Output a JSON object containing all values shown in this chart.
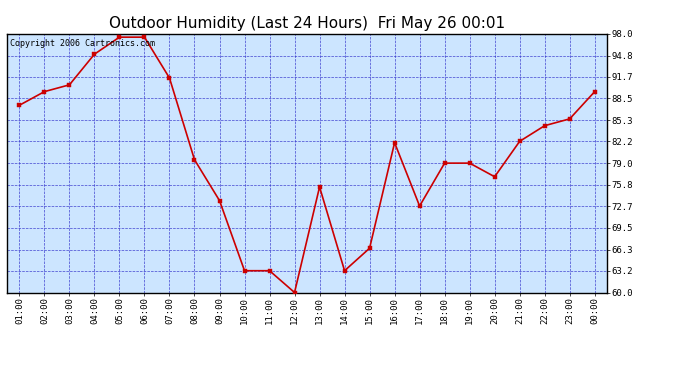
{
  "title": "Outdoor Humidity (Last 24 Hours)  Fri May 26 00:01",
  "copyright_text": "Copyright 2006 Cartronics.com",
  "x_labels": [
    "01:00",
    "02:00",
    "03:00",
    "04:00",
    "05:00",
    "06:00",
    "07:00",
    "08:00",
    "09:00",
    "10:00",
    "11:00",
    "12:00",
    "13:00",
    "14:00",
    "15:00",
    "16:00",
    "17:00",
    "18:00",
    "19:00",
    "20:00",
    "21:00",
    "22:00",
    "23:00",
    "00:00"
  ],
  "y_values": [
    87.5,
    89.5,
    90.5,
    95.0,
    97.5,
    97.5,
    91.5,
    79.5,
    73.5,
    63.2,
    63.2,
    60.0,
    75.5,
    63.2,
    66.5,
    82.0,
    72.7,
    79.0,
    79.0,
    77.0,
    82.2,
    84.5,
    85.5,
    89.5
  ],
  "line_color": "#cc0000",
  "marker_color": "#cc0000",
  "fig_bg_color": "#ffffff",
  "plot_bg_color": "#cce5ff",
  "grid_color": "#3333cc",
  "title_color": "#000000",
  "border_color": "#000000",
  "ylim_min": 60.0,
  "ylim_max": 98.0,
  "y_ticks": [
    60.0,
    63.2,
    66.3,
    69.5,
    72.7,
    75.8,
    79.0,
    82.2,
    85.3,
    88.5,
    91.7,
    94.8,
    98.0
  ],
  "title_fontsize": 11,
  "copyright_fontsize": 6,
  "tick_fontsize": 6.5,
  "marker_size": 2.5,
  "line_width": 1.2
}
